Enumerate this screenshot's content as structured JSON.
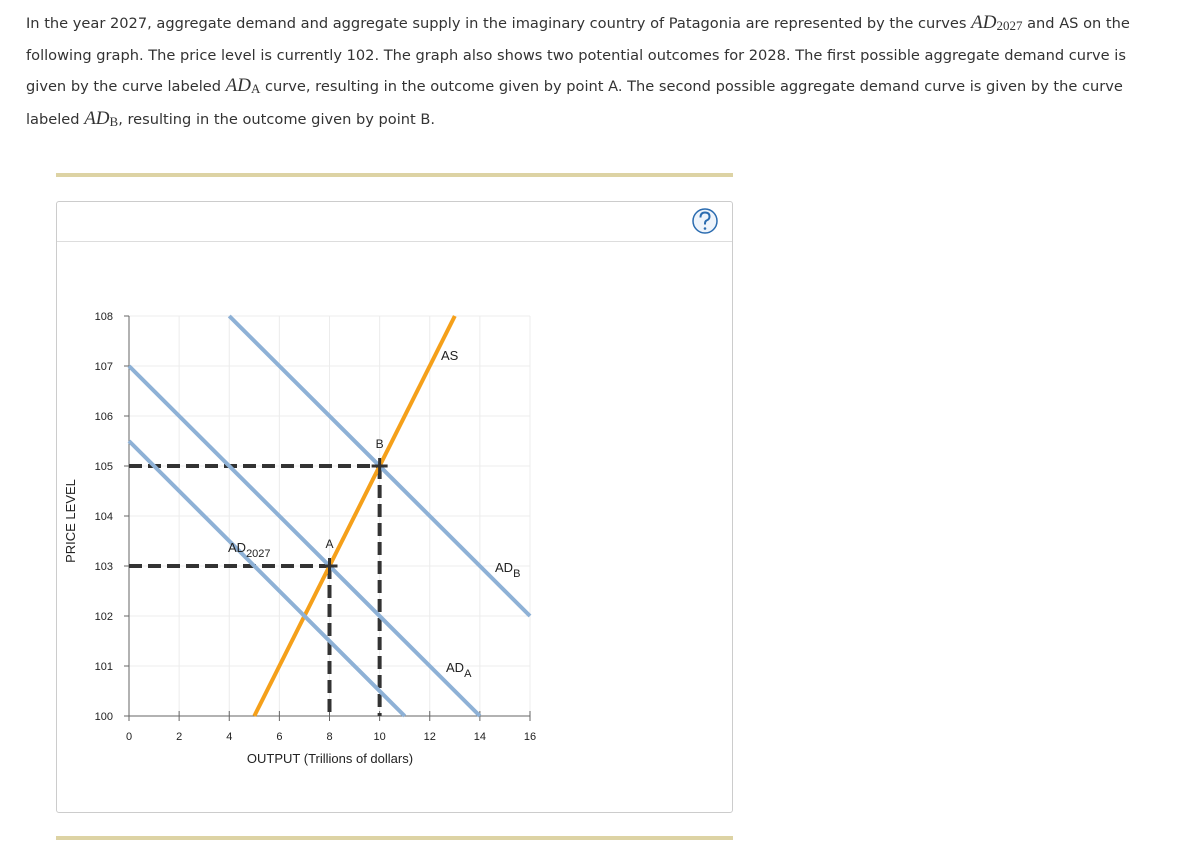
{
  "question": [
    {
      "text": "In the year 2027, aggregate demand and aggregate supply in the imaginary country of Patagonia are represented by the curves "
    },
    {
      "math": "AD",
      "sub": "2027"
    },
    {
      "text": " and AS on the following graph. The price level is currently 102. The graph also shows two potential outcomes for 2028. The first possible aggregate demand curve is given by the curve labeled "
    },
    {
      "math": "AD",
      "sub": "A"
    },
    {
      "text": " curve, resulting in the outcome given by point A. The second possible aggregate demand curve is given by the curve labeled "
    },
    {
      "math": "AD",
      "sub": "B"
    },
    {
      "text": ", resulting in the outcome given by point B."
    }
  ],
  "chart_data": {
    "type": "line",
    "x_label": "OUTPUT (Trillions of dollars)",
    "y_label": "PRICE LEVEL",
    "xlim": [
      0,
      16
    ],
    "ylim": [
      100,
      108
    ],
    "xticks": [
      0,
      2,
      4,
      6,
      8,
      10,
      12,
      14,
      16
    ],
    "yticks": [
      100,
      101,
      102,
      103,
      104,
      105,
      106,
      107,
      108
    ],
    "grid": true,
    "series": [
      {
        "name": "AS",
        "color": "#f5a01a",
        "x": [
          5,
          13
        ],
        "values": [
          100,
          108
        ]
      },
      {
        "name": "AD",
        "sub": "2027",
        "color": "#8eb1d6",
        "x": [
          0,
          11
        ],
        "values": [
          105.5,
          100
        ]
      },
      {
        "name": "AD",
        "sub": "A",
        "color": "#8eb1d6",
        "x": [
          0,
          14
        ],
        "values": [
          107,
          100
        ]
      },
      {
        "name": "AD",
        "sub": "B",
        "color": "#8eb1d6",
        "x": [
          4,
          16
        ],
        "values": [
          108,
          102
        ]
      }
    ],
    "points": [
      {
        "label": "A",
        "x": 8,
        "y": 103
      },
      {
        "label": "B",
        "x": 10,
        "y": 105
      }
    ]
  }
}
